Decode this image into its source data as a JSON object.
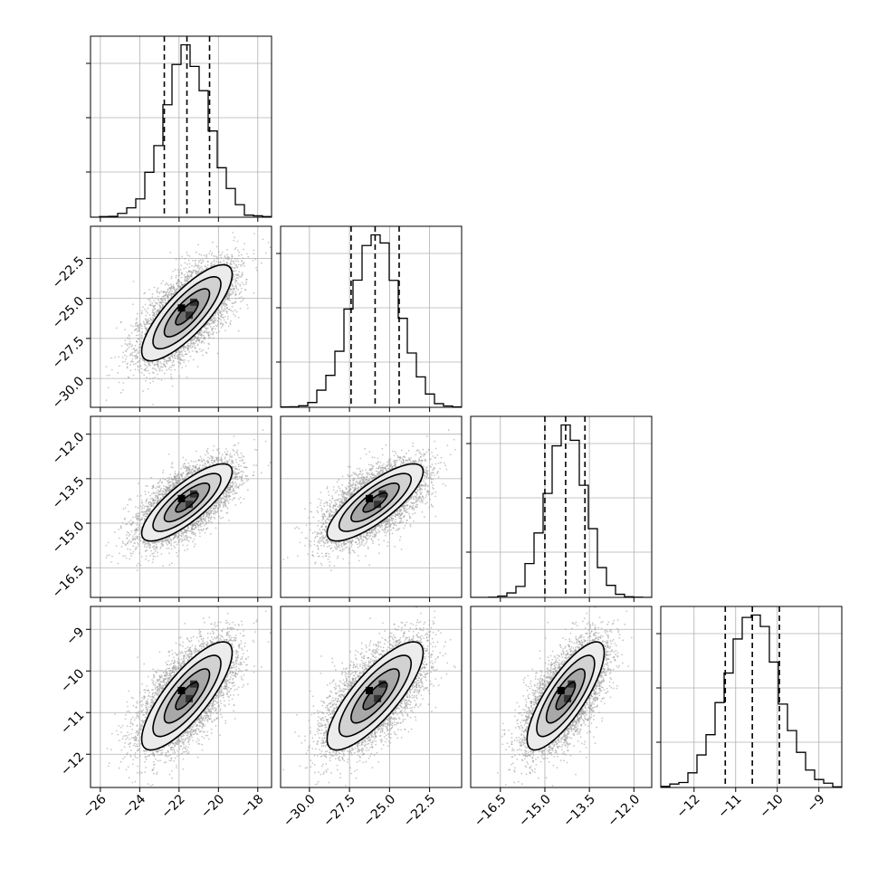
{
  "chart_data": {
    "type": "corner",
    "grid": true,
    "parameters": [
      {
        "mean": -21.6,
        "std": 1.15,
        "quantiles": [
          -22.75,
          -21.6,
          -20.45
        ],
        "range": [
          -26.5,
          -17.3
        ],
        "ticks": [
          -26,
          -24,
          -22,
          -20,
          -18
        ],
        "tick_labels": [
          "−26",
          "−24",
          "−22",
          "−20",
          "−18"
        ]
      },
      {
        "mean": -25.9,
        "std": 1.5,
        "quantiles": [
          -27.4,
          -25.9,
          -24.4
        ],
        "range": [
          -31.8,
          -20.5
        ],
        "ticks": [
          -30.0,
          -27.5,
          -25.0,
          -22.5
        ],
        "tick_labels": [
          "−30.0",
          "−27.5",
          "−25.0",
          "−22.5"
        ]
      },
      {
        "mean": -14.3,
        "std": 0.65,
        "quantiles": [
          -15.0,
          -14.3,
          -13.65
        ],
        "range": [
          -17.5,
          -11.4
        ],
        "ticks": [
          -16.5,
          -15.0,
          -13.5,
          -12.0
        ],
        "tick_labels": [
          "−16.5",
          "−15.0",
          "−13.5",
          "−12.0"
        ]
      },
      {
        "mean": -10.6,
        "std": 0.65,
        "quantiles": [
          -11.25,
          -10.6,
          -9.95
        ],
        "range": [
          -12.8,
          -8.45
        ],
        "ticks": [
          -12,
          -11,
          -10,
          -9
        ],
        "tick_labels": [
          "−12",
          "−11",
          "−10",
          "−9"
        ]
      }
    ],
    "correlation": 0.8,
    "histogram_bins": 20,
    "contour_levels_sigma": [
      0.5,
      1.0,
      1.5,
      2.0
    ]
  }
}
